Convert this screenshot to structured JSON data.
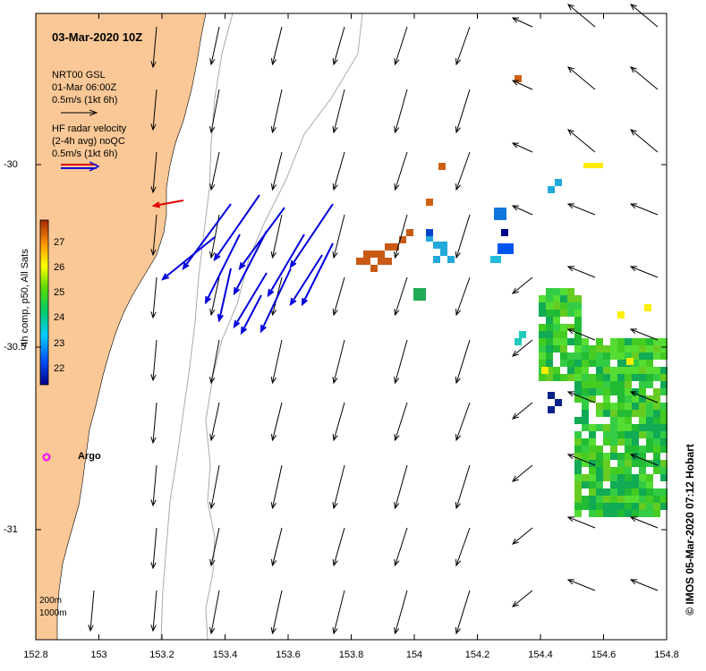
{
  "title": "03-Mar-2020 10Z",
  "legend": {
    "gsl_line1": "NRT00 GSL",
    "gsl_line2": "01-Mar 06:00Z",
    "gsl_line3": "0.5m/s (1kt 6h)",
    "hf_line1": "HF radar velocity",
    "hf_line2": "(2-4h avg) noQC",
    "hf_line3": "0.5m/s (1kt 6h)"
  },
  "colorbar": {
    "label": "4h comp, p50, All Sats",
    "ticks": [
      "27",
      "26",
      "25",
      "24",
      "23",
      "22"
    ]
  },
  "argo_label": "Argo",
  "bathy_labels": [
    "200m",
    "1000m"
  ],
  "credit": "© IMOS 05-Mar-2020 07:12 Hobart",
  "x_ticks": [
    "152.8",
    "153",
    "153.2",
    "153.4",
    "153.6",
    "153.8",
    "154",
    "154.2",
    "154.4",
    "154.6",
    "154.8"
  ],
  "y_ticks": [
    "-30",
    "-30.5",
    "-31"
  ],
  "colors": {
    "land": "#fac896",
    "gsl_arrow": "#000000",
    "hf_arrow": "#0000dd",
    "hf_arrow_red": "#dd0000",
    "argo": "#ff00ff"
  }
}
